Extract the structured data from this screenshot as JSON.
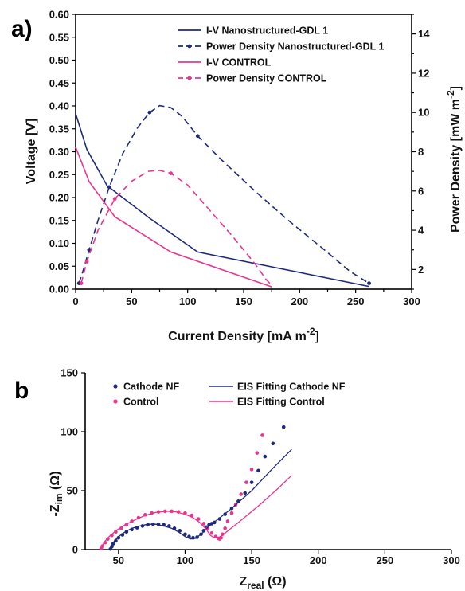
{
  "chart_data": [
    {
      "panel_label": "a)",
      "type": "line",
      "xlabel": "Current Density [mA m",
      "xlabel_sup": "-2",
      "xlabel_end": "]",
      "ylabel": "Voltage [V]",
      "y2label": "Power Density [mW m",
      "y2label_sup": "-2",
      "y2label_end": "]",
      "xlim": [
        0,
        300
      ],
      "ylim": [
        0,
        0.6
      ],
      "y2lim": [
        1,
        15
      ],
      "x_ticks": [
        "0",
        "50",
        "100",
        "150",
        "200",
        "250",
        "300"
      ],
      "y_ticks": [
        "0.00",
        "0.05",
        "0.10",
        "0.15",
        "0.20",
        "0.25",
        "0.30",
        "0.35",
        "0.40",
        "0.45",
        "0.50",
        "0.55",
        "0.60"
      ],
      "y2_ticks": [
        "2",
        "4",
        "6",
        "8",
        "10",
        "12",
        "14"
      ],
      "legend_position": "top-right",
      "series": [
        {
          "name": "I-V Nanostructured-GDL 1",
          "axis": "left",
          "style": "solid",
          "color": "#1f2a7a",
          "x": [
            0,
            10,
            28,
            66,
            109,
            262
          ],
          "y": [
            0.383,
            0.305,
            0.226,
            0.155,
            0.081,
            0.006
          ]
        },
        {
          "name": "Power Density Nanostructured-GDL 1",
          "axis": "right",
          "style": "dashed",
          "color": "#1f2a7a",
          "x": [
            3,
            7,
            12,
            20,
            30,
            42,
            55,
            66,
            75,
            85,
            95,
            109,
            130,
            160,
            190,
            220,
            245,
            262
          ],
          "y": [
            1.3,
            2.0,
            3.0,
            4.5,
            6.2,
            7.9,
            9.2,
            10.0,
            10.35,
            10.25,
            9.8,
            8.8,
            7.6,
            6.0,
            4.5,
            3.1,
            1.9,
            1.3
          ],
          "marker_x": [
            3,
            12,
            30,
            66,
            109,
            262
          ],
          "marker_y": [
            1.3,
            3.0,
            6.2,
            10.0,
            8.8,
            1.3
          ]
        },
        {
          "name": "I-V CONTROL",
          "axis": "left",
          "style": "solid",
          "color": "#e8368f",
          "x": [
            0,
            12,
            35,
            85,
            175
          ],
          "y": [
            0.31,
            0.235,
            0.158,
            0.081,
            0.005
          ]
        },
        {
          "name": "Power Density CONTROL",
          "axis": "right",
          "style": "dashed",
          "color": "#e8368f",
          "x": [
            5,
            10,
            20,
            35,
            50,
            65,
            75,
            85,
            100,
            120,
            140,
            160,
            170,
            175
          ],
          "y": [
            1.3,
            2.4,
            4.0,
            5.6,
            6.5,
            7.0,
            7.05,
            6.9,
            6.3,
            5.0,
            3.7,
            2.3,
            1.5,
            1.2
          ],
          "marker_x": [
            5,
            10,
            35,
            85
          ],
          "marker_y": [
            1.3,
            2.4,
            5.6,
            6.9
          ]
        }
      ]
    },
    {
      "panel_label": "b",
      "type": "scatter",
      "xlabel": "Z",
      "xlabel_sub": "real",
      "xlabel_end": " (Ω)",
      "ylabel": "-Z",
      "ylabel_sub": "im",
      "ylabel_end": " (Ω)",
      "xlim": [
        25,
        300
      ],
      "ylim": [
        0,
        150
      ],
      "x_ticks": [
        "50",
        "100",
        "150",
        "200",
        "250",
        "300"
      ],
      "y_ticks": [
        "0",
        "50",
        "100",
        "150"
      ],
      "legend_position": "top-left",
      "series": [
        {
          "name": "Cathode NF",
          "kind": "points",
          "color": "#1f2a7a",
          "x": [
            44,
            45,
            46,
            48,
            50,
            53,
            56,
            60,
            64,
            68,
            72,
            76,
            80,
            84,
            88,
            92,
            96,
            100,
            103,
            106,
            109,
            112,
            114,
            116,
            118,
            120,
            122,
            126,
            130,
            135,
            140,
            145,
            150,
            155,
            160,
            166,
            174
          ],
          "y": [
            0.5,
            2.5,
            5,
            7.5,
            10,
            12.5,
            15,
            17,
            18.5,
            20,
            21,
            21.5,
            21.5,
            21,
            20,
            18,
            16,
            13,
            11,
            10,
            10.5,
            13,
            16,
            19,
            21,
            22,
            23,
            26,
            30,
            35,
            41,
            48,
            57,
            67,
            79,
            90,
            104
          ]
        },
        {
          "name": "Control",
          "kind": "points",
          "color": "#e8368f",
          "x": [
            37,
            38,
            40,
            42,
            45,
            48,
            52,
            56,
            60,
            65,
            70,
            75,
            80,
            85,
            90,
            95,
            100,
            105,
            110,
            114,
            117,
            120,
            123,
            125,
            126,
            127,
            128,
            130,
            132,
            135,
            138,
            142,
            146,
            150,
            154,
            158
          ],
          "y": [
            1,
            3,
            6,
            9,
            12,
            15,
            18,
            21,
            24,
            27,
            29.5,
            31,
            32,
            32.5,
            32.5,
            32,
            31,
            29,
            26,
            22,
            18,
            14,
            11,
            9.5,
            9,
            10,
            13,
            18,
            24,
            31,
            38,
            47,
            57,
            68,
            82,
            97
          ]
        },
        {
          "name": "EIS Fitting Cathode NF",
          "kind": "line",
          "color": "#1f2a7a",
          "x": [
            44,
            46,
            50,
            55,
            60,
            66,
            72,
            78,
            84,
            90,
            95,
            100,
            104,
            108,
            113,
            118,
            125,
            135,
            150,
            165,
            180
          ],
          "y": [
            0,
            6,
            11,
            15,
            18,
            20,
            21.5,
            21.5,
            20,
            18,
            15,
            11,
            9,
            9.5,
            14,
            20,
            26,
            35,
            50,
            68,
            85
          ]
        },
        {
          "name": "EIS Fitting Control",
          "kind": "line",
          "color": "#e8368f",
          "x": [
            37,
            39,
            43,
            48,
            55,
            62,
            70,
            78,
            86,
            93,
            100,
            106,
            111,
            116,
            119,
            122,
            125,
            130,
            140,
            155,
            170,
            180
          ],
          "y": [
            0,
            6,
            11,
            16,
            21,
            25,
            29,
            31.5,
            32.5,
            32,
            30,
            27,
            23,
            17,
            12,
            10,
            10,
            14,
            23,
            37,
            52,
            63
          ]
        }
      ]
    }
  ]
}
